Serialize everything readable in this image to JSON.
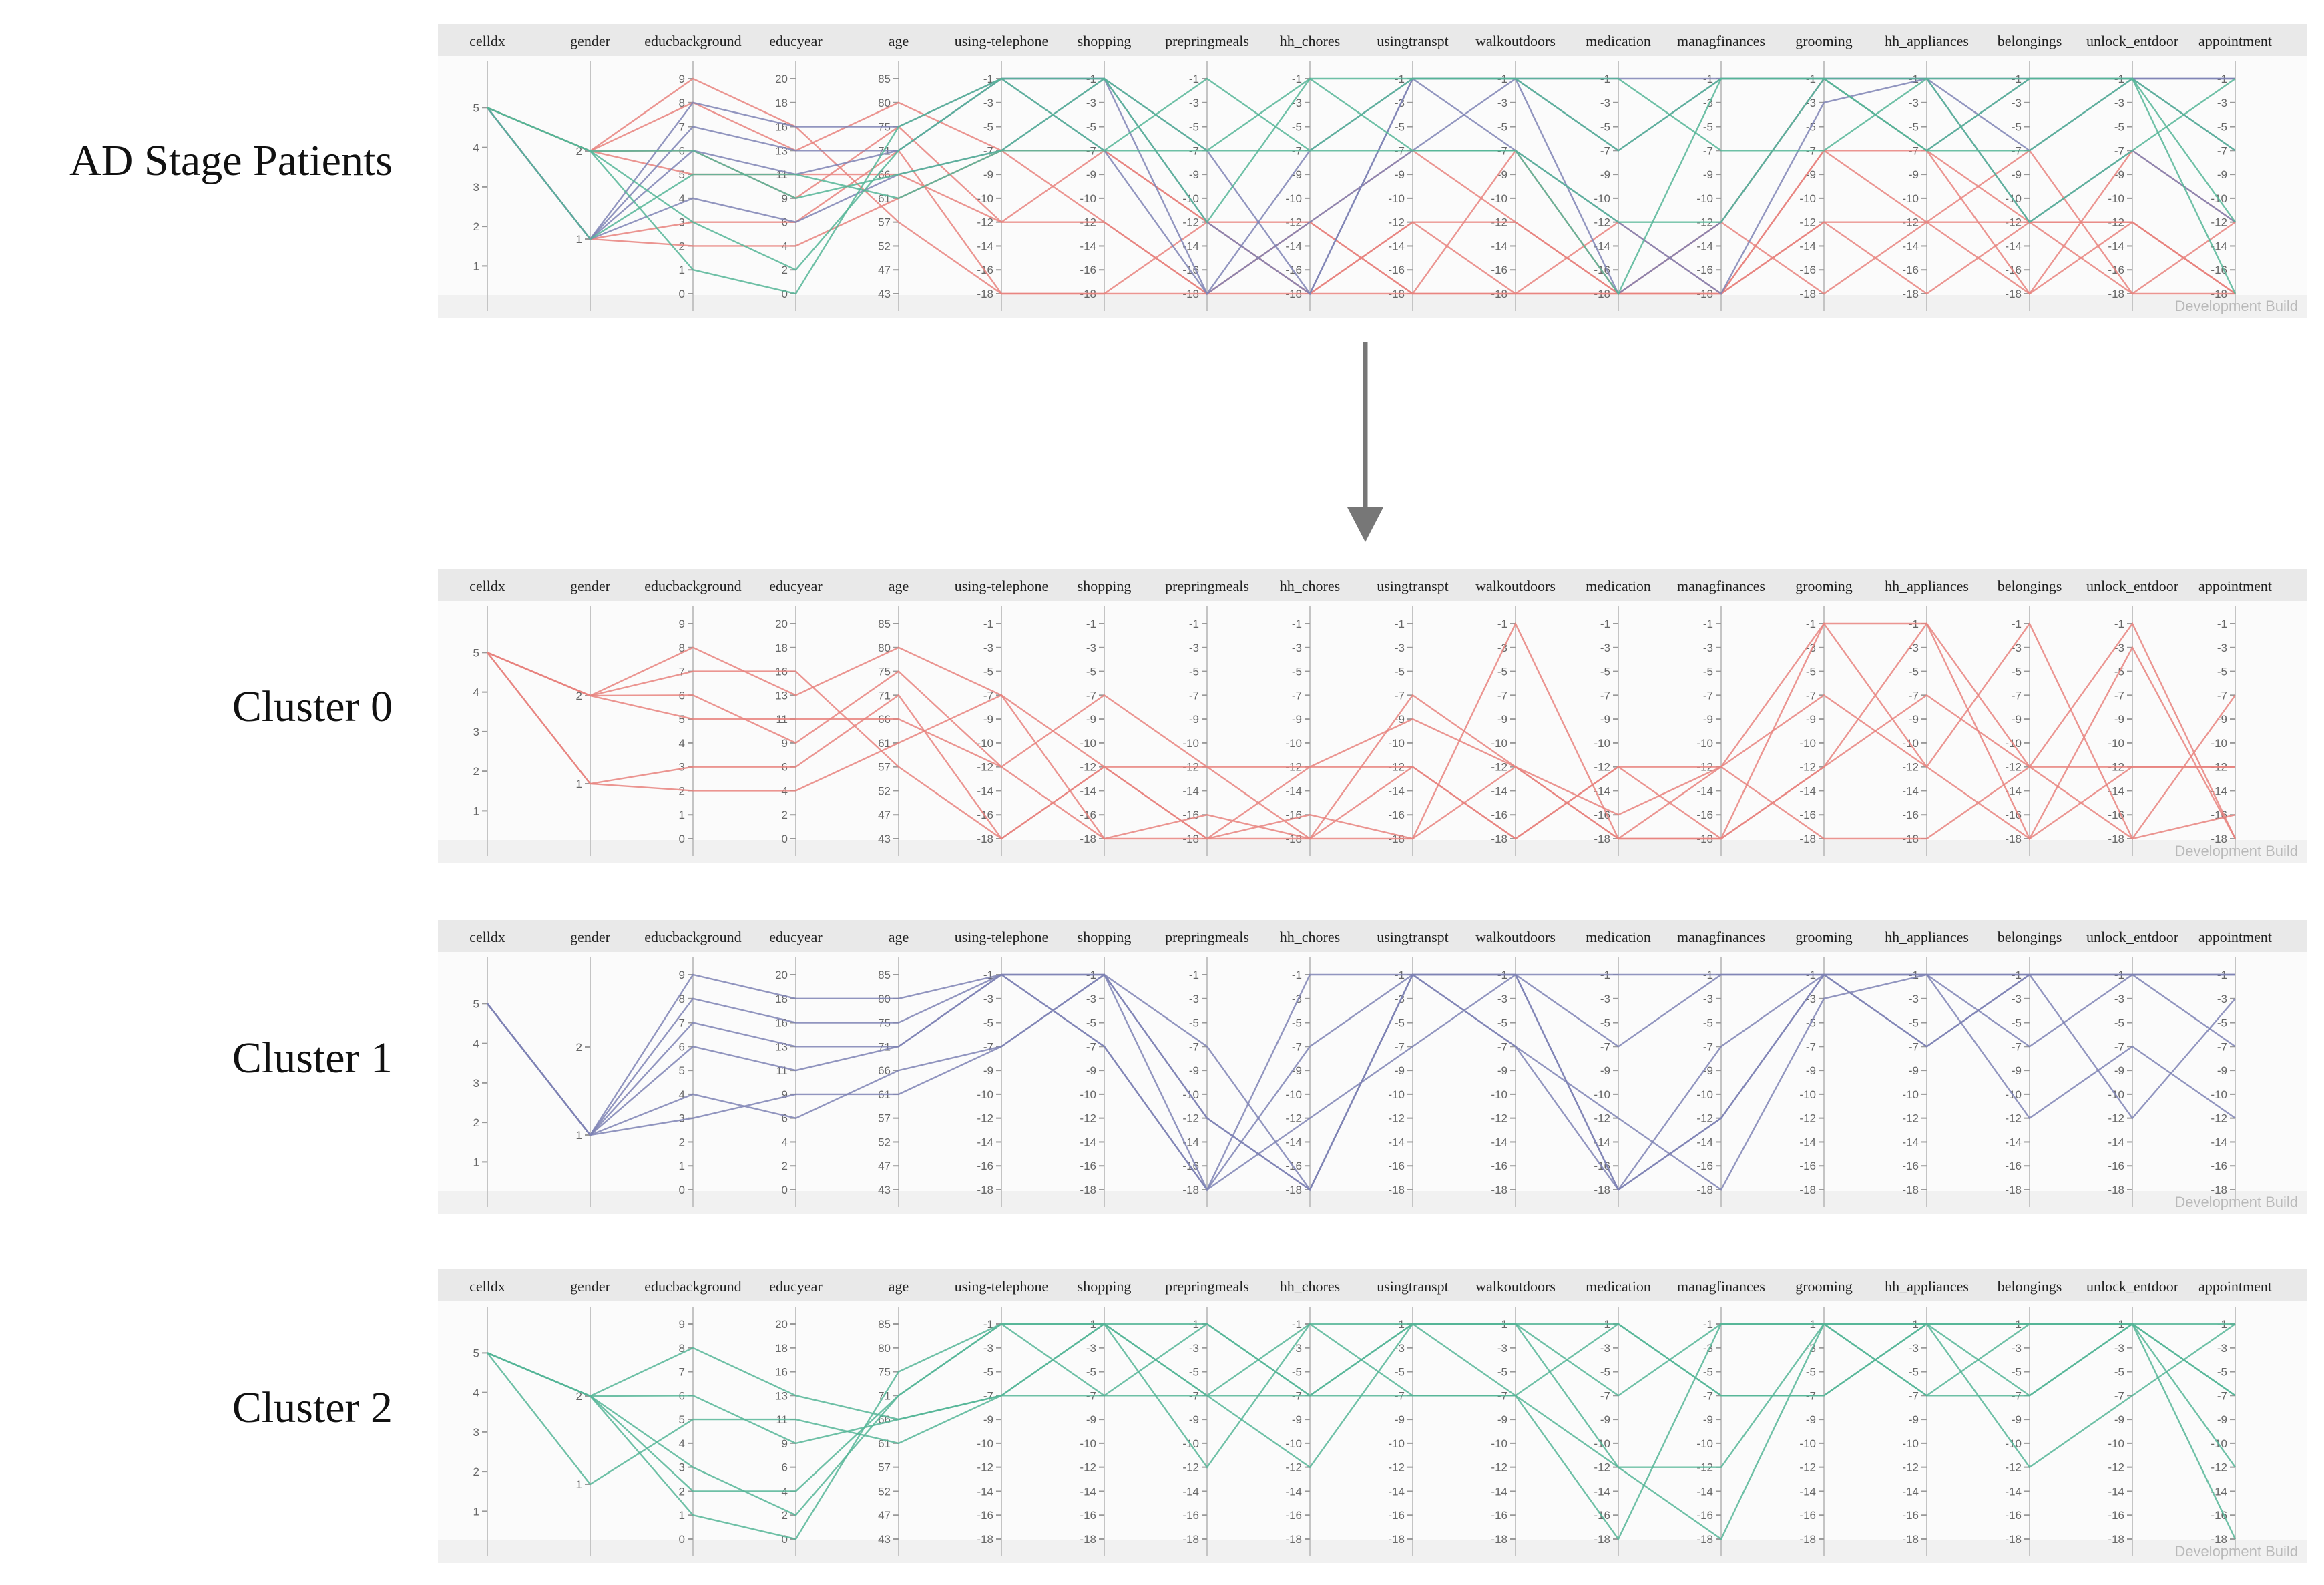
{
  "axes": [
    {
      "name": "celldx",
      "ticks": [
        "1",
        "2",
        "3",
        "4",
        "5"
      ]
    },
    {
      "name": "gender",
      "ticks": [
        "1",
        "2"
      ]
    },
    {
      "name": "educbackground",
      "ticks": [
        "0",
        "1",
        "2",
        "3",
        "4",
        "5",
        "6",
        "7",
        "8",
        "9"
      ]
    },
    {
      "name": "educyear",
      "ticks": [
        "0",
        "2",
        "4",
        "6",
        "9",
        "11",
        "13",
        "16",
        "18",
        "20"
      ]
    },
    {
      "name": "age",
      "ticks": [
        "43",
        "47",
        "52",
        "57",
        "61",
        "66",
        "71",
        "75",
        "80",
        "85"
      ]
    },
    {
      "name": "using-telephone",
      "ticks": [
        "-18",
        "-16",
        "-14",
        "-12",
        "-10",
        "-9",
        "-7",
        "-5",
        "-3",
        "-1"
      ]
    },
    {
      "name": "shopping",
      "ticks": [
        "-18",
        "-16",
        "-14",
        "-12",
        "-10",
        "-9",
        "-7",
        "-5",
        "-3",
        "-1"
      ]
    },
    {
      "name": "prepringmeals",
      "ticks": [
        "-18",
        "-16",
        "-14",
        "-12",
        "-10",
        "-9",
        "-7",
        "-5",
        "-3",
        "-1"
      ]
    },
    {
      "name": "hh_chores",
      "ticks": [
        "-18",
        "-16",
        "-14",
        "-12",
        "-10",
        "-9",
        "-7",
        "-5",
        "-3",
        "-1"
      ]
    },
    {
      "name": "usingtranspt",
      "ticks": [
        "-18",
        "-16",
        "-14",
        "-12",
        "-10",
        "-9",
        "-7",
        "-5",
        "-3",
        "-1"
      ]
    },
    {
      "name": "walkoutdoors",
      "ticks": [
        "-18",
        "-16",
        "-14",
        "-12",
        "-10",
        "-9",
        "-7",
        "-5",
        "-3",
        "-1"
      ]
    },
    {
      "name": "medication",
      "ticks": [
        "-18",
        "-16",
        "-14",
        "-12",
        "-10",
        "-9",
        "-7",
        "-5",
        "-3",
        "-1"
      ]
    },
    {
      "name": "managfinances",
      "ticks": [
        "-18",
        "-16",
        "-14",
        "-12",
        "-10",
        "-9",
        "-7",
        "-5",
        "-3",
        "-1"
      ]
    },
    {
      "name": "grooming",
      "ticks": [
        "-18",
        "-16",
        "-14",
        "-12",
        "-10",
        "-9",
        "-7",
        "-5",
        "-3",
        "-1"
      ]
    },
    {
      "name": "hh_appliances",
      "ticks": [
        "-18",
        "-16",
        "-14",
        "-12",
        "-10",
        "-9",
        "-7",
        "-5",
        "-3",
        "-1"
      ]
    },
    {
      "name": "belongings",
      "ticks": [
        "-18",
        "-16",
        "-14",
        "-12",
        "-10",
        "-9",
        "-7",
        "-5",
        "-3",
        "-1"
      ]
    },
    {
      "name": "unlock_entdoor",
      "ticks": [
        "-18",
        "-16",
        "-14",
        "-12",
        "-10",
        "-9",
        "-7",
        "-5",
        "-3",
        "-1"
      ]
    },
    {
      "name": "appointment",
      "ticks": [
        "-18",
        "-16",
        "-14",
        "-12",
        "-10",
        "-9",
        "-7",
        "-5",
        "-3",
        "-1"
      ]
    }
  ],
  "watermark": "Development Build",
  "colors": {
    "cluster0": "#e8837e",
    "cluster1": "#7e82b4",
    "cluster2": "#55b596",
    "axis": "#9a9a9a",
    "header_bg": "#e9e9e9"
  },
  "chart_data": [
    {
      "type": "parallel-coordinates",
      "label": "AD Stage Patients",
      "series": [
        {
          "name": "cluster0",
          "color": "#e8837e",
          "lines": [
            [
              5,
              2,
              8,
              13,
              80,
              -7,
              -7,
              -12,
              -12,
              -18,
              -18,
              -18,
              -18,
              -12,
              -12,
              -12,
              -12,
              -18
            ],
            [
              5,
              2,
              6,
              9,
              75,
              -12,
              -12,
              -18,
              -18,
              -12,
              -12,
              -18,
              -18,
              -7,
              -7,
              -12,
              -12,
              -18
            ],
            [
              5,
              1,
              3,
              6,
              71,
              -18,
              -18,
              -18,
              -12,
              -18,
              -18,
              -18,
              -12,
              -1,
              -7,
              -18,
              -7,
              -12
            ],
            [
              5,
              2,
              5,
              11,
              66,
              -12,
              -7,
              -12,
              -18,
              -12,
              -18,
              -12,
              -18,
              -7,
              -12,
              -18,
              -12,
              -18
            ],
            [
              5,
              1,
              2,
              4,
              61,
              -7,
              -12,
              -18,
              -12,
              -7,
              -12,
              -18,
              -18,
              -12,
              -18,
              -12,
              -18,
              -12
            ],
            [
              5,
              2,
              9,
              16,
              57,
              -18,
              -18,
              -12,
              -18,
              -18,
              -7,
              -18,
              -12,
              -18,
              -12,
              -7,
              -18,
              -18
            ]
          ]
        },
        {
          "name": "cluster1",
          "color": "#7e82b4",
          "lines": [
            [
              5,
              1,
              8,
              16,
              75,
              -1,
              -1,
              -7,
              -18,
              -1,
              -1,
              -1,
              -1,
              -1,
              -1,
              -1,
              -1,
              -1
            ],
            [
              5,
              1,
              6,
              11,
              71,
              -1,
              -7,
              -18,
              -12,
              -7,
              -1,
              -18,
              -12,
              -1,
              -7,
              -1,
              -1,
              -7
            ],
            [
              5,
              1,
              4,
              6,
              66,
              -7,
              -1,
              -12,
              -18,
              -1,
              -7,
              -12,
              -18,
              -3,
              -1,
              -7,
              -1,
              -1
            ],
            [
              5,
              1,
              7,
              13,
              71,
              -1,
              -1,
              -18,
              -7,
              -1,
              -1,
              -7,
              -1,
              -1,
              -1,
              -12,
              -7,
              -12
            ]
          ]
        },
        {
          "name": "cluster2",
          "color": "#55b596",
          "lines": [
            [
              5,
              2,
              3,
              2,
              71,
              -1,
              -1,
              -7,
              -1,
              -1,
              -1,
              -7,
              -1,
              -1,
              -1,
              -1,
              -1,
              -7
            ],
            [
              5,
              2,
              6,
              9,
              66,
              -7,
              -7,
              -7,
              -7,
              -7,
              -7,
              -12,
              -12,
              -1,
              -7,
              -7,
              -1,
              -18
            ],
            [
              5,
              2,
              1,
              0,
              75,
              -1,
              -7,
              -1,
              -7,
              -1,
              -1,
              -1,
              -7,
              -7,
              -1,
              -12,
              -7,
              -1
            ],
            [
              5,
              1,
              5,
              11,
              61,
              -7,
              -1,
              -12,
              -1,
              -7,
              -7,
              -18,
              -1,
              -1,
              -7,
              -1,
              -1,
              -12
            ]
          ]
        }
      ]
    },
    {
      "type": "parallel-coordinates",
      "label": "Cluster 0",
      "series": [
        {
          "name": "cluster0",
          "color": "#e8837e",
          "lines": [
            [
              5,
              2,
              8,
              13,
              80,
              -7,
              -12,
              -12,
              -18,
              -7,
              -12,
              -18,
              -18,
              -1,
              -1,
              -12,
              -1,
              -18
            ],
            [
              5,
              2,
              6,
              9,
              75,
              -12,
              -18,
              -18,
              -12,
              -12,
              -18,
              -12,
              -12,
              -7,
              -12,
              -18,
              -12,
              -12
            ],
            [
              5,
              1,
              3,
              6,
              71,
              -18,
              -12,
              -18,
              -18,
              -18,
              -1,
              -18,
              -18,
              -12,
              -7,
              -12,
              -18,
              -7
            ],
            [
              5,
              2,
              5,
              11,
              66,
              -12,
              -7,
              -12,
              -12,
              -9,
              -12,
              -18,
              -12,
              -18,
              -18,
              -12,
              -12,
              -12
            ],
            [
              5,
              1,
              2,
              4,
              61,
              -7,
              -18,
              -16,
              -18,
              -12,
              -18,
              -12,
              -18,
              -12,
              -1,
              -18,
              -3,
              -18
            ],
            [
              5,
              2,
              7,
              16,
              57,
              -18,
              -12,
              -18,
              -16,
              -18,
              -12,
              -16,
              -12,
              -1,
              -12,
              -1,
              -18,
              -16
            ]
          ]
        }
      ]
    },
    {
      "type": "parallel-coordinates",
      "label": "Cluster 1",
      "series": [
        {
          "name": "cluster1",
          "color": "#7e82b4",
          "lines": [
            [
              5,
              1,
              8,
              16,
              75,
              -1,
              -1,
              -7,
              -18,
              -1,
              -1,
              -1,
              -1,
              -1,
              -1,
              -1,
              -1,
              -1
            ],
            [
              5,
              1,
              6,
              11,
              71,
              -1,
              -7,
              -18,
              -12,
              -7,
              -1,
              -18,
              -12,
              -1,
              -7,
              -1,
              -1,
              -7
            ],
            [
              5,
              1,
              4,
              6,
              66,
              -7,
              -1,
              -12,
              -18,
              -1,
              -7,
              -12,
              -18,
              -3,
              -1,
              -7,
              -1,
              -1
            ],
            [
              5,
              1,
              7,
              13,
              71,
              -1,
              -1,
              -18,
              -7,
              -1,
              -1,
              -7,
              -1,
              -1,
              -1,
              -12,
              -7,
              -12
            ],
            [
              5,
              1,
              3,
              9,
              61,
              -7,
              -1,
              -12,
              -18,
              -1,
              -1,
              -18,
              -12,
              -1,
              -1,
              -1,
              -12,
              -3
            ],
            [
              5,
              1,
              9,
              18,
              80,
              -1,
              -7,
              -18,
              -1,
              -1,
              -7,
              -18,
              -7,
              -1,
              -7,
              -1,
              -1,
              -1
            ]
          ]
        }
      ]
    },
    {
      "type": "parallel-coordinates",
      "label": "Cluster 2",
      "series": [
        {
          "name": "cluster2",
          "color": "#55b596",
          "lines": [
            [
              5,
              2,
              3,
              2,
              71,
              -1,
              -1,
              -7,
              -1,
              -1,
              -1,
              -7,
              -1,
              -1,
              -1,
              -1,
              -1,
              -7
            ],
            [
              5,
              2,
              6,
              9,
              66,
              -7,
              -7,
              -7,
              -7,
              -7,
              -7,
              -12,
              -12,
              -1,
              -7,
              -7,
              -1,
              -18
            ],
            [
              5,
              2,
              1,
              0,
              75,
              -1,
              -7,
              -1,
              -7,
              -1,
              -1,
              -1,
              -7,
              -7,
              -1,
              -12,
              -7,
              -1
            ],
            [
              5,
              1,
              5,
              11,
              61,
              -7,
              -1,
              -12,
              -1,
              -7,
              -7,
              -18,
              -1,
              -1,
              -7,
              -1,
              -1,
              -12
            ],
            [
              5,
              2,
              2,
              4,
              71,
              -1,
              -1,
              -7,
              -12,
              -1,
              -1,
              -12,
              -18,
              -1,
              -1,
              -1,
              -1,
              -7
            ],
            [
              5,
              2,
              8,
              13,
              66,
              -7,
              -1,
              -1,
              -7,
              -1,
              -7,
              -1,
              -7,
              -7,
              -1,
              -7,
              -1,
              -1
            ]
          ]
        }
      ]
    }
  ]
}
